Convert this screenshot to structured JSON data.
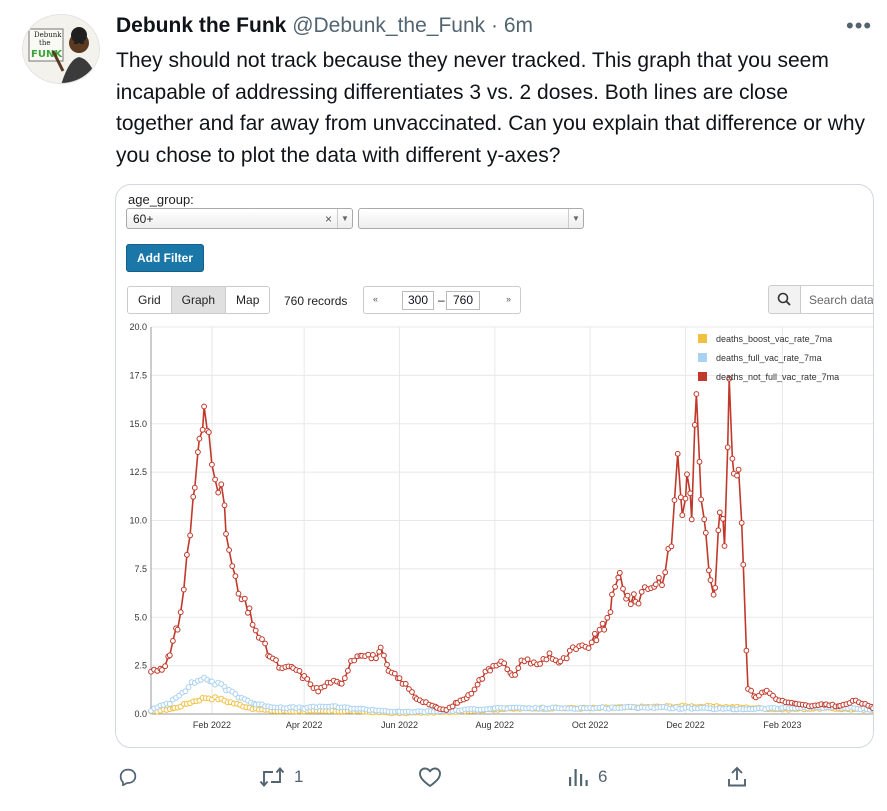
{
  "tweet": {
    "display_name": "Debunk the Funk",
    "handle": "@Debunk_the_Funk",
    "separator": "·",
    "time": "6m",
    "more": "•••",
    "text": "They should not track because they never tracked. This graph that you seem incapable of addressing differentiates 3 vs. 2 doses. Both lines are close together and far away from unvaccinated. Can you explain that difference or why you chose to plot the data with different y-axes?",
    "avatar": {
      "line1": "Debunk",
      "line2": "the",
      "line3": "FUNK"
    }
  },
  "embed": {
    "filter_label": "age_group:",
    "filter_value": "60+",
    "clear_symbol": "×",
    "add_filter": "Add Filter",
    "view_tabs": [
      {
        "label": "Grid",
        "active": false
      },
      {
        "label": "Graph",
        "active": true
      },
      {
        "label": "Map",
        "active": false
      }
    ],
    "records": "760 records",
    "pager": {
      "prev": "«",
      "from": "300",
      "dash": "–",
      "to": "760",
      "next": "»"
    },
    "search_placeholder": "Search data"
  },
  "chart_data": {
    "type": "line",
    "title": "",
    "xlabel": "",
    "ylabel": "",
    "ylim": [
      0,
      20
    ],
    "yticks": [
      "0.0",
      "2.5",
      "5.0",
      "7.5",
      "10.0",
      "12.5",
      "15.0",
      "17.5",
      "20.0"
    ],
    "xlim": [
      "2021-12-24",
      "2023-03-31"
    ],
    "xticks": [
      {
        "label": "Feb 2022",
        "date": "2022-02-01"
      },
      {
        "label": "Apr 2022",
        "date": "2022-04-01"
      },
      {
        "label": "Jun 2022",
        "date": "2022-06-01"
      },
      {
        "label": "Aug 2022",
        "date": "2022-08-01"
      },
      {
        "label": "Oct 2022",
        "date": "2022-10-01"
      },
      {
        "label": "Dec 2022",
        "date": "2022-12-01"
      },
      {
        "label": "Feb 2023",
        "date": "2023-02-01"
      }
    ],
    "grid": true,
    "legend_position": "top-right",
    "series": [
      {
        "name": "deaths_boost_vac_rate_7ma",
        "color": "#f0c040",
        "points": [
          [
            "2021-12-24",
            0.1
          ],
          [
            "2022-01-08",
            0.3
          ],
          [
            "2022-01-20",
            0.65
          ],
          [
            "2022-01-28",
            0.85
          ],
          [
            "2022-02-05",
            0.8
          ],
          [
            "2022-02-15",
            0.55
          ],
          [
            "2022-03-01",
            0.25
          ],
          [
            "2022-03-15",
            0.15
          ],
          [
            "2022-04-01",
            0.15
          ],
          [
            "2022-05-01",
            0.15
          ],
          [
            "2022-06-01",
            0.05
          ],
          [
            "2022-07-01",
            0.1
          ],
          [
            "2022-08-01",
            0.25
          ],
          [
            "2022-09-01",
            0.3
          ],
          [
            "2022-10-01",
            0.3
          ],
          [
            "2022-11-01",
            0.35
          ],
          [
            "2022-12-01",
            0.4
          ],
          [
            "2023-01-01",
            0.35
          ],
          [
            "2023-02-01",
            0.25
          ],
          [
            "2023-03-01",
            0.3
          ],
          [
            "2023-03-31",
            0.2
          ]
        ]
      },
      {
        "name": "deaths_full_vac_rate_7ma",
        "color": "#a9d1f2",
        "points": [
          [
            "2021-12-24",
            0.2
          ],
          [
            "2022-01-05",
            0.6
          ],
          [
            "2022-01-15",
            1.3
          ],
          [
            "2022-01-25",
            1.85
          ],
          [
            "2022-02-01",
            1.7
          ],
          [
            "2022-02-10",
            1.3
          ],
          [
            "2022-02-20",
            0.85
          ],
          [
            "2022-03-01",
            0.5
          ],
          [
            "2022-03-15",
            0.35
          ],
          [
            "2022-04-01",
            0.3
          ],
          [
            "2022-04-15",
            0.4
          ],
          [
            "2022-05-01",
            0.3
          ],
          [
            "2022-06-01",
            0.1
          ],
          [
            "2022-07-01",
            0.15
          ],
          [
            "2022-08-01",
            0.3
          ],
          [
            "2022-09-01",
            0.3
          ],
          [
            "2022-10-01",
            0.3
          ],
          [
            "2022-11-01",
            0.35
          ],
          [
            "2022-12-01",
            0.3
          ],
          [
            "2023-01-01",
            0.25
          ],
          [
            "2023-02-01",
            0.3
          ],
          [
            "2023-03-01",
            0.35
          ],
          [
            "2023-03-31",
            0.25
          ]
        ]
      },
      {
        "name": "deaths_not_full_vac_rate_7ma",
        "color": "#c0392b",
        "points": [
          [
            "2021-12-24",
            2.2
          ],
          [
            "2021-12-31",
            2.4
          ],
          [
            "2022-01-05",
            3.0
          ],
          [
            "2022-01-10",
            4.5
          ],
          [
            "2022-01-14",
            6.5
          ],
          [
            "2022-01-18",
            9.5
          ],
          [
            "2022-01-21",
            12.0
          ],
          [
            "2022-01-24",
            13.8
          ],
          [
            "2022-01-27",
            15.3
          ],
          [
            "2022-01-30",
            14.5
          ],
          [
            "2022-02-03",
            12.8
          ],
          [
            "2022-02-07",
            11.5
          ],
          [
            "2022-02-10",
            9.5
          ],
          [
            "2022-02-14",
            7.5
          ],
          [
            "2022-02-18",
            6.2
          ],
          [
            "2022-02-25",
            5.2
          ],
          [
            "2022-03-03",
            4.0
          ],
          [
            "2022-03-10",
            3.0
          ],
          [
            "2022-03-18",
            2.3
          ],
          [
            "2022-03-25",
            2.4
          ],
          [
            "2022-04-01",
            1.9
          ],
          [
            "2022-04-10",
            1.2
          ],
          [
            "2022-04-18",
            1.7
          ],
          [
            "2022-04-25",
            1.5
          ],
          [
            "2022-05-01",
            2.8
          ],
          [
            "2022-05-08",
            3.2
          ],
          [
            "2022-05-15",
            2.9
          ],
          [
            "2022-05-20",
            3.3
          ],
          [
            "2022-05-25",
            2.2
          ],
          [
            "2022-06-01",
            1.8
          ],
          [
            "2022-06-05",
            1.5
          ],
          [
            "2022-06-12",
            0.8
          ],
          [
            "2022-06-18",
            0.6
          ],
          [
            "2022-06-25",
            0.3
          ],
          [
            "2022-07-01",
            0.2
          ],
          [
            "2022-07-08",
            0.6
          ],
          [
            "2022-07-15",
            0.9
          ],
          [
            "2022-07-22",
            1.7
          ],
          [
            "2022-07-29",
            2.4
          ],
          [
            "2022-08-05",
            2.8
          ],
          [
            "2022-08-12",
            1.9
          ],
          [
            "2022-08-20",
            2.9
          ],
          [
            "2022-08-28",
            2.5
          ],
          [
            "2022-09-05",
            3.1
          ],
          [
            "2022-09-12",
            2.6
          ],
          [
            "2022-09-20",
            3.3
          ],
          [
            "2022-09-28",
            3.4
          ],
          [
            "2022-10-05",
            4.0
          ],
          [
            "2022-10-10",
            4.5
          ],
          [
            "2022-10-15",
            5.8
          ],
          [
            "2022-10-20",
            7.2
          ],
          [
            "2022-10-25",
            6.0
          ],
          [
            "2022-10-30",
            5.8
          ],
          [
            "2022-11-05",
            6.5
          ],
          [
            "2022-11-12",
            6.8
          ],
          [
            "2022-11-18",
            7.2
          ],
          [
            "2022-11-22",
            9.0
          ],
          [
            "2022-11-26",
            13.2
          ],
          [
            "2022-11-29",
            10.5
          ],
          [
            "2022-12-02",
            12.0
          ],
          [
            "2022-12-05",
            10.8
          ],
          [
            "2022-12-08",
            16.0
          ],
          [
            "2022-12-11",
            11.5
          ],
          [
            "2022-12-14",
            9.8
          ],
          [
            "2022-12-17",
            7.0
          ],
          [
            "2022-12-20",
            6.2
          ],
          [
            "2022-12-23",
            10.9
          ],
          [
            "2022-12-26",
            8.8
          ],
          [
            "2022-12-29",
            16.5
          ],
          [
            "2023-01-01",
            12.5
          ],
          [
            "2023-01-04",
            13.0
          ],
          [
            "2023-01-07",
            8.0
          ],
          [
            "2023-01-10",
            1.3
          ],
          [
            "2023-01-15",
            0.9
          ],
          [
            "2023-01-22",
            1.2
          ],
          [
            "2023-01-30",
            0.7
          ],
          [
            "2023-02-10",
            0.5
          ],
          [
            "2023-02-20",
            0.4
          ],
          [
            "2023-03-01",
            0.5
          ],
          [
            "2023-03-10",
            0.4
          ],
          [
            "2023-03-20",
            0.7
          ],
          [
            "2023-03-31",
            0.3
          ]
        ]
      }
    ]
  },
  "actions": {
    "reply_count": "",
    "retweet_count": "1",
    "like_count": "",
    "views_count": "6"
  }
}
